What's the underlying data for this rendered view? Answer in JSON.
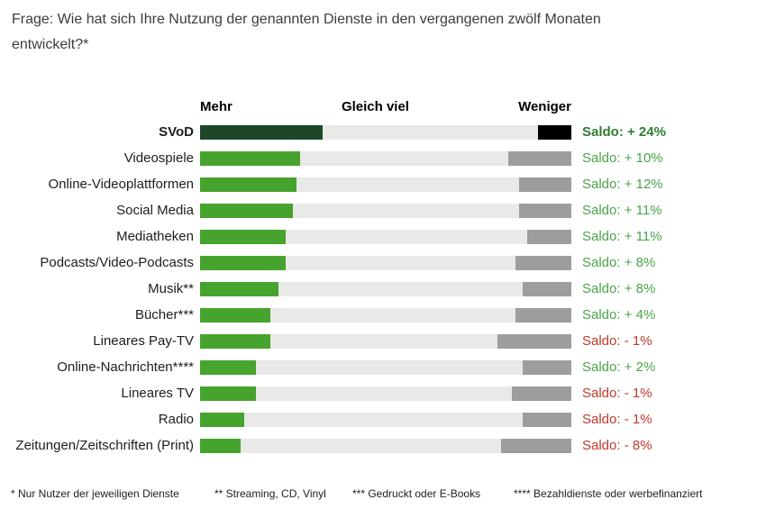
{
  "title": "Frage: Wie hat sich Ihre Nutzung der genannten Dienste in den vergangenen zwölf Monaten entwickelt?*",
  "colors": {
    "green": "#46a32d",
    "dark_green": "#1e4727",
    "light_gray": "#e9e9e7",
    "gray": "#9d9d9c",
    "black": "#000000",
    "saldo_positive": "#4aa448",
    "saldo_positive_bold": "#2f7d33",
    "saldo_negative": "#c0392b"
  },
  "chart_data": {
    "type": "bar",
    "orientation": "horizontal",
    "stacked": true,
    "xlim_percent": [
      0,
      100
    ],
    "grid": false,
    "legend_headers": [
      "Mehr",
      "Gleich viel",
      "Weniger"
    ],
    "categories": [
      "SVoD",
      "Videospiele",
      "Online-Videoplattformen",
      "Social Media",
      "Mediatheken",
      "Podcasts/Video-Podcasts",
      "Musik**",
      "Bücher***",
      "Lineares Pay-TV",
      "Online-Nachrichten****",
      "Lineares TV",
      "Radio",
      "Zeitungen/Zeitschriften (Print)"
    ],
    "series": [
      {
        "name": "Mehr",
        "values": [
          33,
          27,
          26,
          25,
          23,
          23,
          21,
          19,
          19,
          15,
          15,
          12,
          11
        ]
      },
      {
        "name": "Gleich viel",
        "values": [
          58,
          56,
          60,
          61,
          65,
          62,
          66,
          66,
          61,
          72,
          69,
          75,
          70
        ]
      },
      {
        "name": "Weniger",
        "values": [
          9,
          17,
          14,
          14,
          12,
          15,
          13,
          15,
          20,
          13,
          16,
          13,
          19
        ]
      }
    ],
    "saldo_values": [
      24,
      10,
      12,
      11,
      11,
      8,
      8,
      4,
      -1,
      2,
      -1,
      -1,
      -8
    ],
    "saldo_labels": [
      "Saldo: + 24%",
      "Saldo: + 10%",
      "Saldo: + 12%",
      "Saldo: + 11%",
      "Saldo: + 11%",
      "Saldo: + 8%",
      "Saldo: + 8%",
      "Saldo: + 4%",
      "Saldo: - 1%",
      "Saldo: + 2%",
      "Saldo: - 1%",
      "Saldo: - 1%",
      "Saldo: - 8%"
    ],
    "emphasized_category": "SVoD"
  },
  "footnotes": [
    "* Nur Nutzer der jeweiligen Dienste",
    "** Streaming, CD, Vinyl",
    "*** Gedruckt oder E-Books",
    "**** Bezahldienste oder werbefinanziert"
  ]
}
